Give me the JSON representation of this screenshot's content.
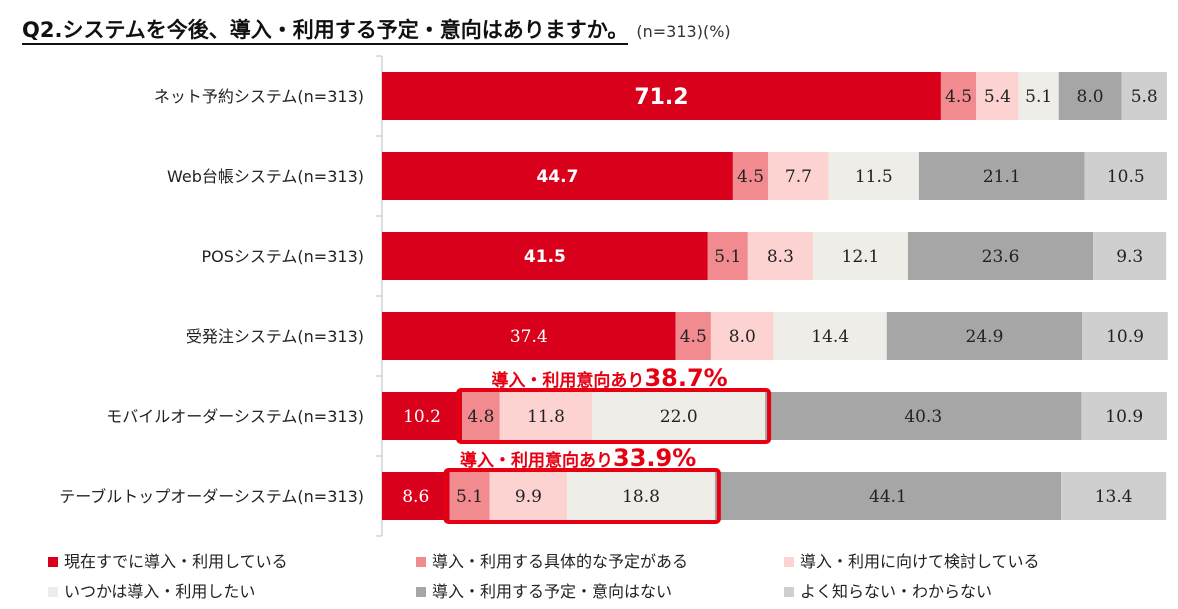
{
  "title": {
    "main": "Q2.システムを今後、導入・利用する予定・意向はありますか。",
    "note": "(n=313)(%)"
  },
  "colors": [
    "#d9001b",
    "#f28b8f",
    "#fdd3d1",
    "#efede8",
    "#a6a6a6",
    "#cfcfcf"
  ],
  "chart_data": {
    "type": "bar",
    "orientation": "horizontal",
    "stacked": true,
    "percent": true,
    "categories": [
      "ネット予約システム(n=313)",
      "Web台帳システム(n=313)",
      "POSシステム(n=313)",
      "受発注システム(n=313)",
      "モバイルオーダーシステム(n=313)",
      "テーブルトップオーダーシステム(n=313)"
    ],
    "series": [
      {
        "name": "現在すでに導入・利用している",
        "values": [
          71.2,
          44.7,
          41.5,
          37.4,
          10.2,
          8.6
        ]
      },
      {
        "name": "導入・利用する具体的な予定がある",
        "values": [
          4.5,
          4.5,
          5.1,
          4.5,
          4.8,
          5.1
        ]
      },
      {
        "name": "導入・利用に向けて検討している",
        "values": [
          5.4,
          7.7,
          8.3,
          8.0,
          11.8,
          9.9
        ]
      },
      {
        "name": "いつかは導入・利用したい",
        "values": [
          5.1,
          11.5,
          12.1,
          14.4,
          22.0,
          18.8
        ]
      },
      {
        "name": "導入・利用する予定・意向はない",
        "values": [
          8.0,
          21.1,
          23.6,
          24.9,
          40.3,
          44.1
        ]
      },
      {
        "name": "よく知らない・わからない",
        "values": [
          5.8,
          10.5,
          9.3,
          10.9,
          10.9,
          13.4
        ]
      }
    ],
    "xlim": [
      0,
      100
    ],
    "annotations": [
      {
        "category_index": 4,
        "label": "導入・利用意向あり",
        "value": "38.7%",
        "series_range": [
          1,
          3
        ]
      },
      {
        "category_index": 5,
        "label": "導入・利用意向あり",
        "value": "33.9%",
        "series_range": [
          1,
          3
        ]
      }
    ],
    "legend_position": "bottom"
  }
}
